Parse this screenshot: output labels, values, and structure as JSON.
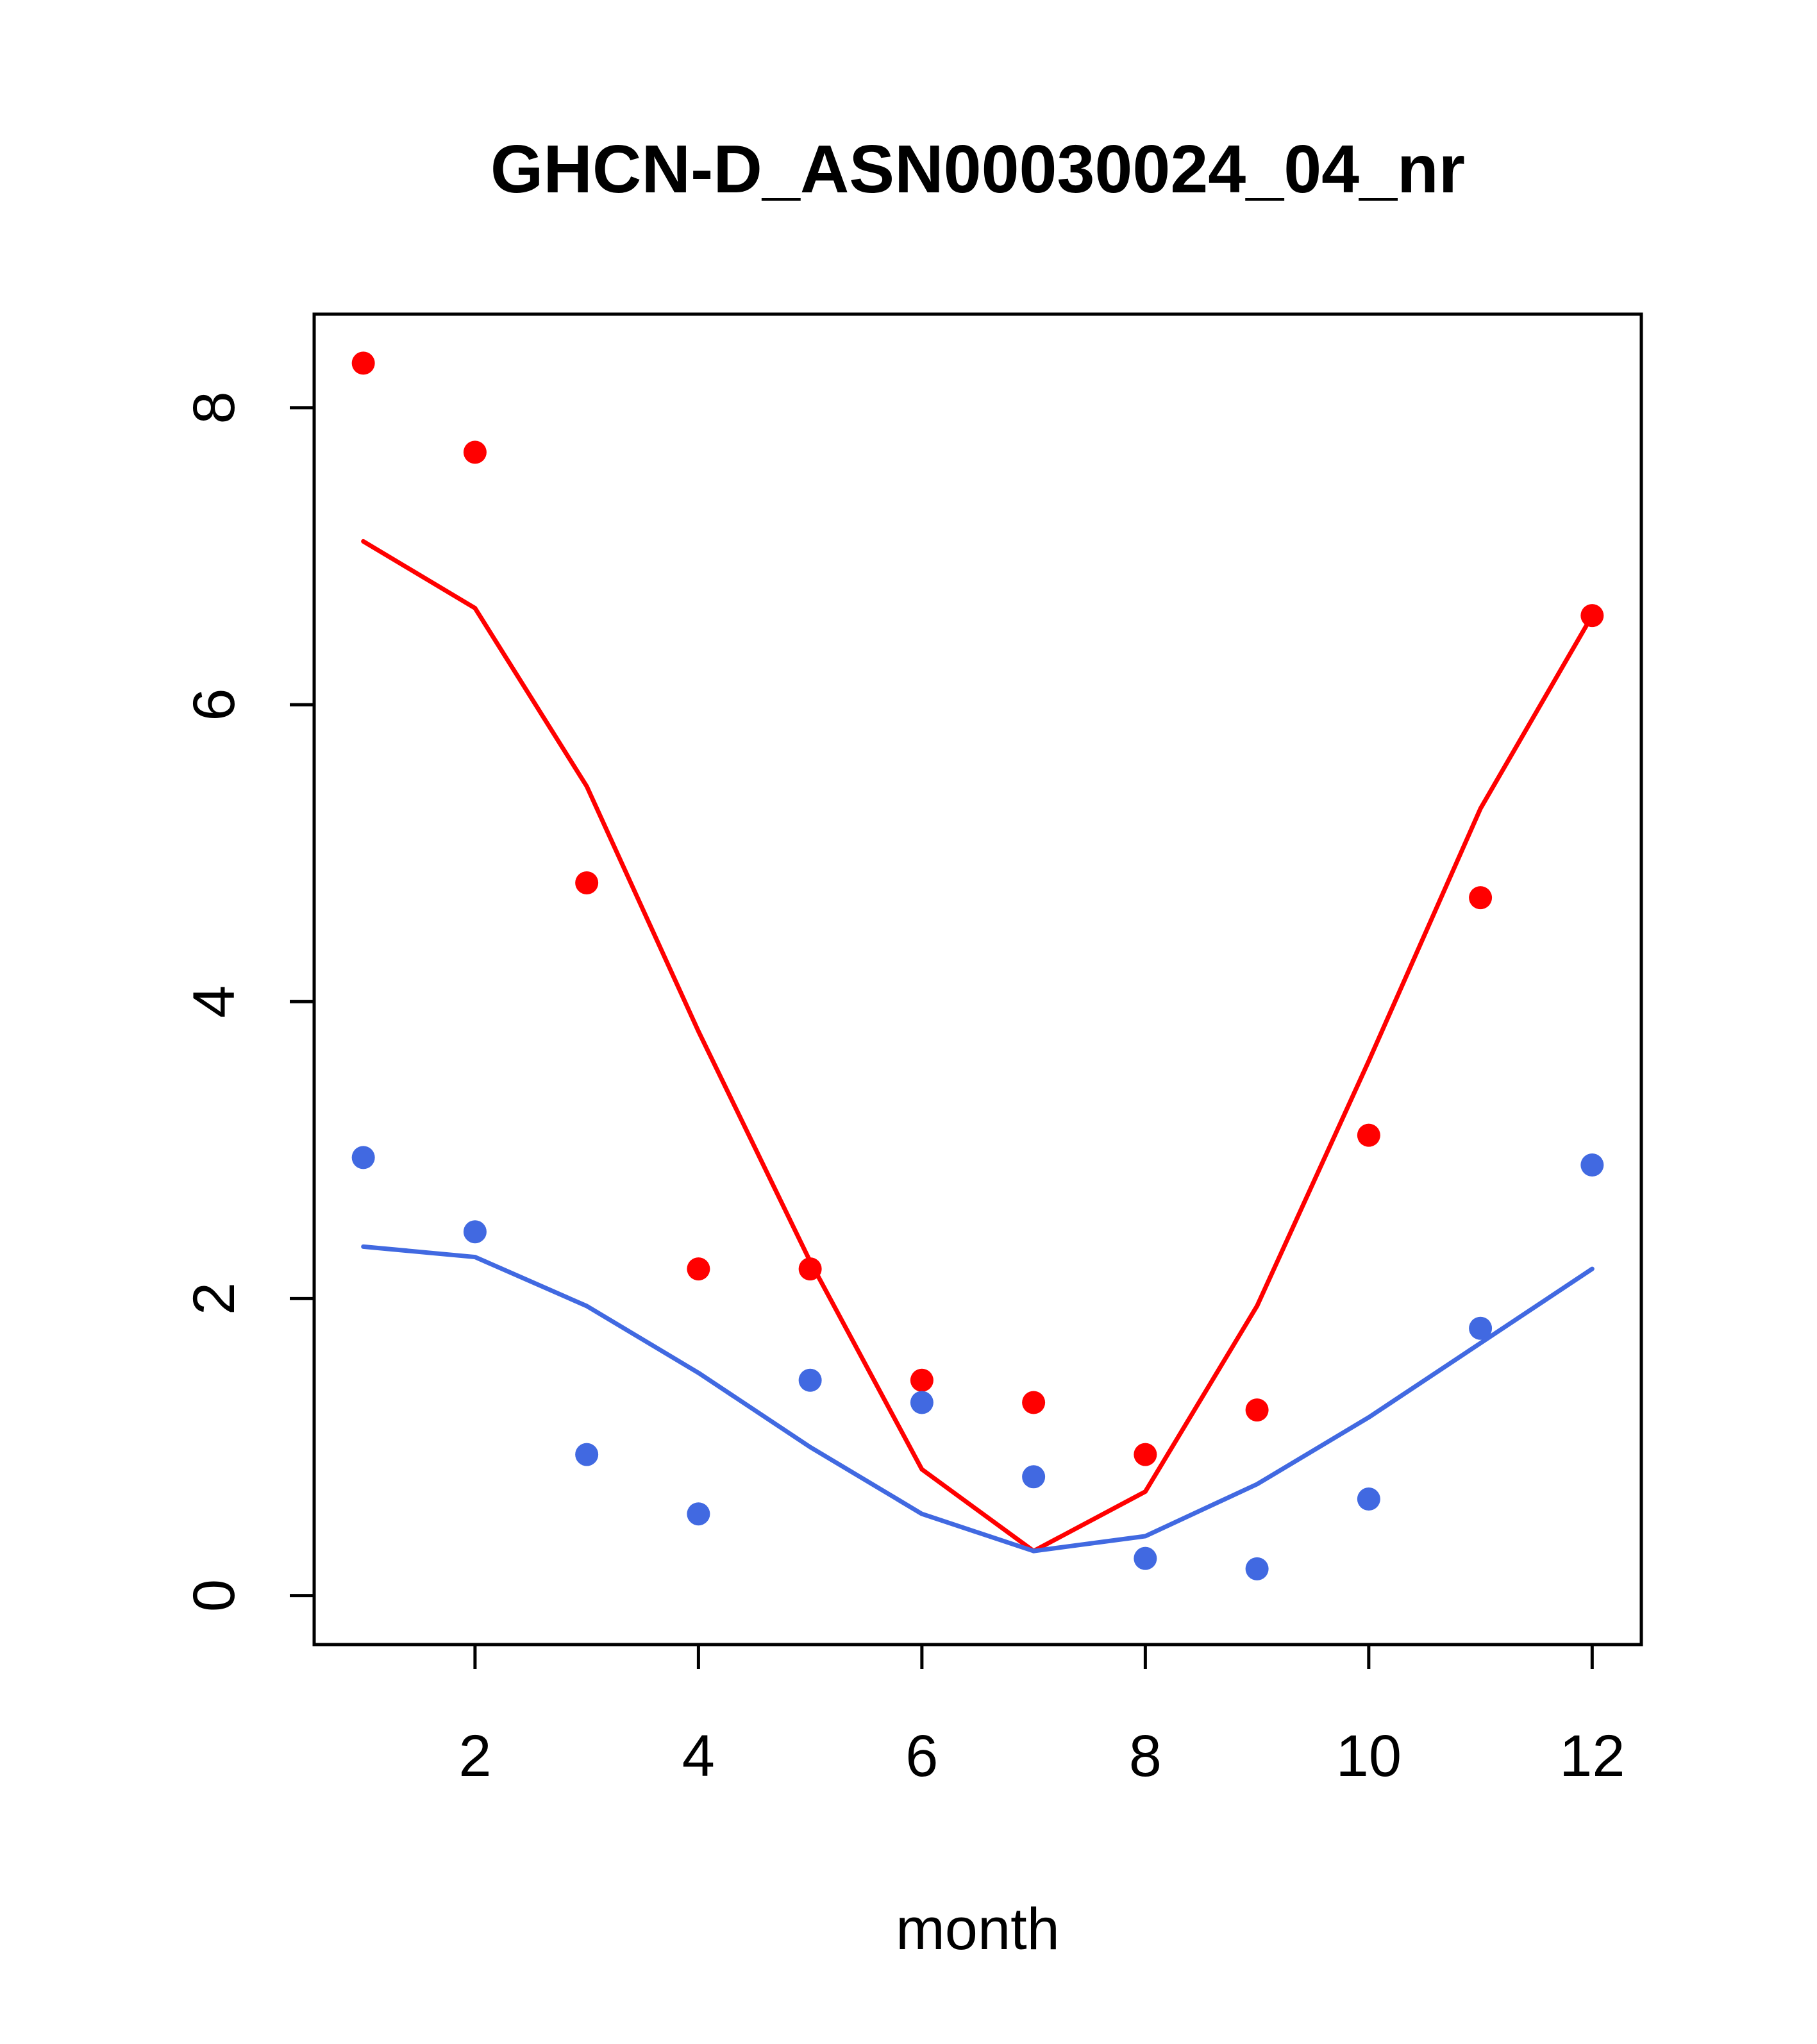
{
  "title": "GHCN-D_ASN00030024_04_nr",
  "xlabel": "month",
  "ylabel": "",
  "chart_data": {
    "type": "line",
    "title": "GHCN-D_ASN00030024_04_nr",
    "xlabel": "month",
    "ylabel": "",
    "x": [
      1,
      2,
      3,
      4,
      5,
      6,
      7,
      8,
      9,
      10,
      11,
      12
    ],
    "xticks": [
      2,
      4,
      6,
      8,
      10,
      12
    ],
    "yticks": [
      0,
      2,
      4,
      6,
      8
    ],
    "xlim": [
      0.56,
      12.44
    ],
    "ylim": [
      -0.33,
      8.63
    ],
    "grid": false,
    "legend": "none",
    "colors": {
      "red": "#ff0000",
      "blue": "#4169e1",
      "frame": "#000000"
    },
    "series": [
      {
        "name": "red-line",
        "style": "line",
        "color": "#ff0000",
        "values": [
          7.1,
          6.65,
          5.45,
          3.8,
          2.25,
          0.85,
          0.3,
          0.7,
          1.95,
          3.6,
          5.3,
          6.6
        ]
      },
      {
        "name": "blue-line",
        "style": "line",
        "color": "#4169e1",
        "values": [
          2.35,
          2.28,
          1.95,
          1.5,
          1.0,
          0.55,
          0.3,
          0.4,
          0.75,
          1.2,
          1.7,
          2.2
        ]
      },
      {
        "name": "red-points",
        "style": "points",
        "color": "#ff0000",
        "values": [
          8.3,
          7.7,
          4.8,
          2.2,
          2.2,
          1.45,
          1.3,
          0.95,
          1.25,
          3.1,
          4.7,
          6.6
        ]
      },
      {
        "name": "blue-points",
        "style": "points",
        "color": "#4169e1",
        "values": [
          2.95,
          2.45,
          0.95,
          0.55,
          1.45,
          1.3,
          0.8,
          0.25,
          0.18,
          0.65,
          1.8,
          2.9
        ]
      }
    ]
  }
}
